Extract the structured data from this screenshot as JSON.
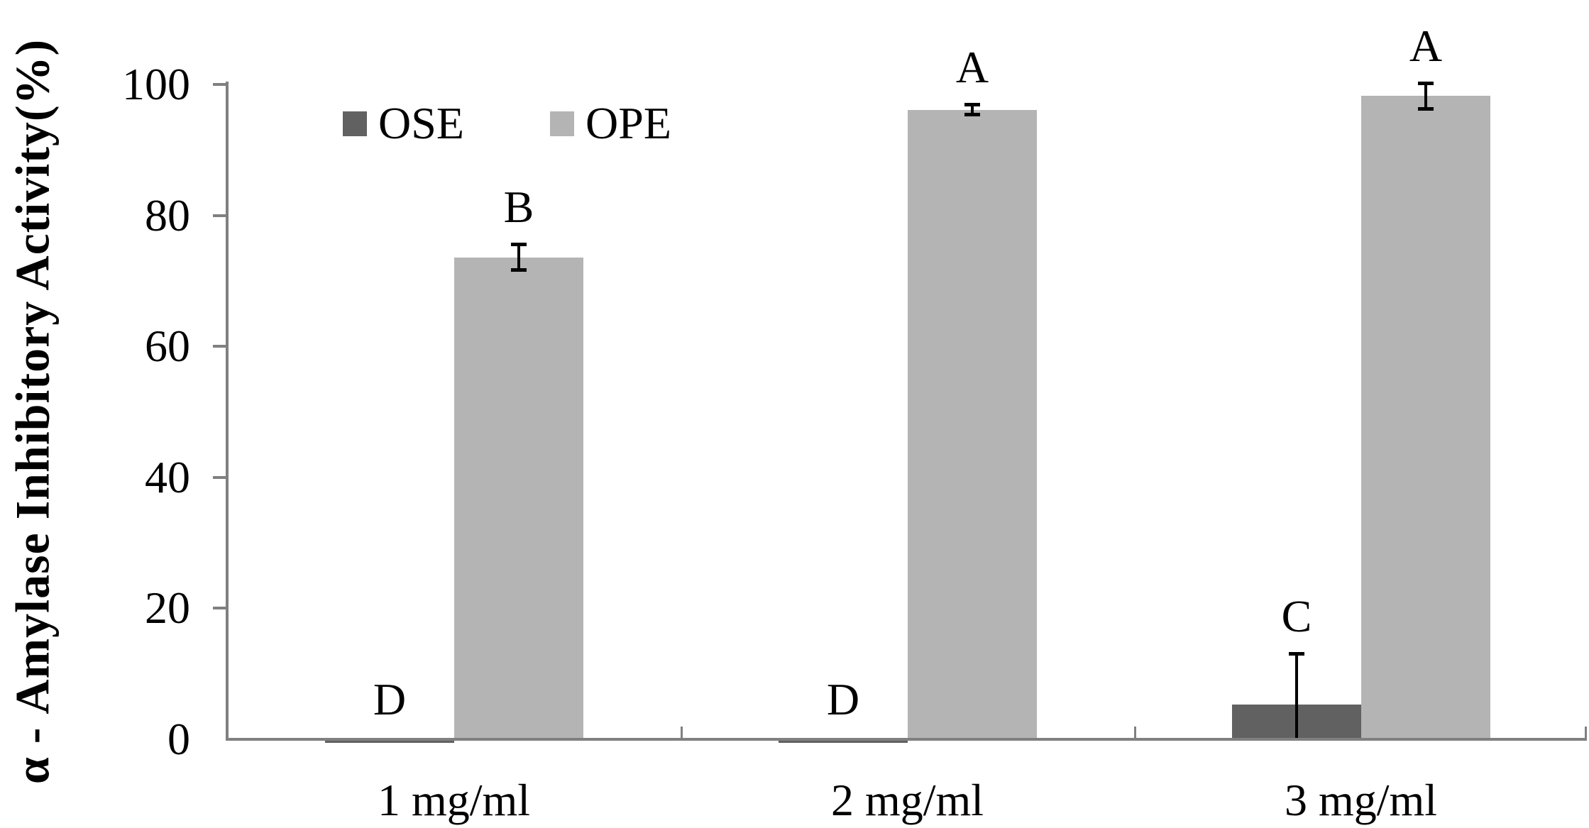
{
  "chart_data": {
    "type": "bar",
    "title": "",
    "ylabel": "α - Amylase Inhibitory Activity(%)",
    "xlabel": "",
    "categories": [
      "1 mg/ml",
      "2 mg/ml",
      "3 mg/ml"
    ],
    "series": [
      {
        "name": "OSE",
        "color": "#616161",
        "values": [
          0.2,
          0.2,
          5.1
        ],
        "errors": [
          0,
          0,
          7.8
        ],
        "sig_letters": [
          "D",
          "D",
          "C"
        ]
      },
      {
        "name": "OPE",
        "color": "#b4b4b4",
        "values": [
          73.4,
          95.9,
          98.0
        ],
        "errors": [
          2.0,
          0.8,
          2.0
        ],
        "sig_letters": [
          "B",
          "A",
          "A"
        ]
      }
    ],
    "ylim": [
      0,
      100
    ],
    "yticks": [
      0,
      20,
      40,
      60,
      80,
      100
    ],
    "grid": false,
    "legend_position": "top-inside",
    "axis_color": "#808080",
    "error_bar_color": "#000000"
  }
}
